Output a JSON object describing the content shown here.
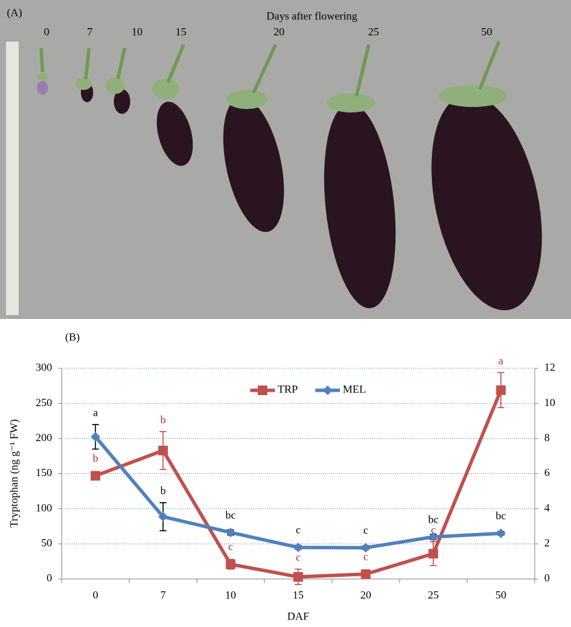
{
  "photo": {
    "panel_label": "(A)",
    "title": "Days after flowering",
    "days": [
      "0",
      "7",
      "10",
      "15",
      "20",
      "25",
      "50"
    ]
  },
  "chart_data": {
    "type": "line",
    "panel_label": "(B)",
    "y_label": "Tryptophan (ng g⁻¹ FW)",
    "x_label": "DAF",
    "categories": [
      "0",
      "7",
      "10",
      "15",
      "20",
      "25",
      "50"
    ],
    "series": [
      {
        "name": "TRP",
        "color": "#c0504d",
        "marker": "square",
        "axis": "y",
        "values": [
          147,
          183,
          21,
          3,
          7,
          36,
          269
        ],
        "errors": [
          0,
          27,
          7,
          11,
          4,
          17,
          25
        ],
        "letters": [
          "b",
          "b",
          "c",
          "c",
          "c",
          "c",
          "a"
        ],
        "letter_color": "#c0272d"
      },
      {
        "name": "MEL",
        "color": "#4f81bd",
        "marker": "diamond",
        "axis": "y2",
        "values": [
          8.1,
          3.55,
          2.65,
          1.8,
          1.78,
          2.4,
          2.6
        ],
        "errors": [
          0.7,
          0.8,
          0.15,
          0.1,
          0.1,
          0.15,
          0.1
        ],
        "letters": [
          "a",
          "b",
          "bc",
          "c",
          "c",
          "bc",
          "bc"
        ],
        "letter_color": "#000000"
      }
    ],
    "ylim": [
      0,
      300
    ],
    "yticks": [
      0,
      50,
      100,
      150,
      200,
      250,
      300
    ],
    "y2lim": [
      0,
      12
    ],
    "y2ticks": [
      0,
      2,
      4,
      6,
      8,
      10,
      12
    ],
    "grid": true,
    "legend": "top"
  }
}
